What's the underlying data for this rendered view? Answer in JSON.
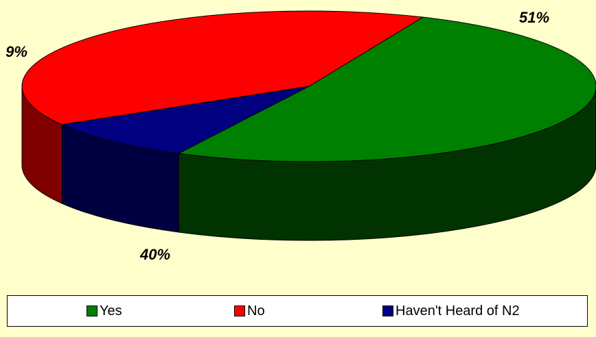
{
  "chart_data": {
    "type": "pie",
    "title": "",
    "slices": [
      {
        "label": "Yes",
        "value": 51,
        "value_label": "51%",
        "color": "#008000",
        "side_color": "#003300"
      },
      {
        "label": "No",
        "value": 40,
        "value_label": "40%",
        "color": "#ff0000",
        "side_color": "#800000"
      },
      {
        "label": "Haven't Heard of N2",
        "value": 9,
        "value_label": "9%",
        "color": "#000080",
        "side_color": "#000040"
      }
    ],
    "style": "3d",
    "legend_position": "bottom",
    "background_color": "#ffffcc"
  }
}
